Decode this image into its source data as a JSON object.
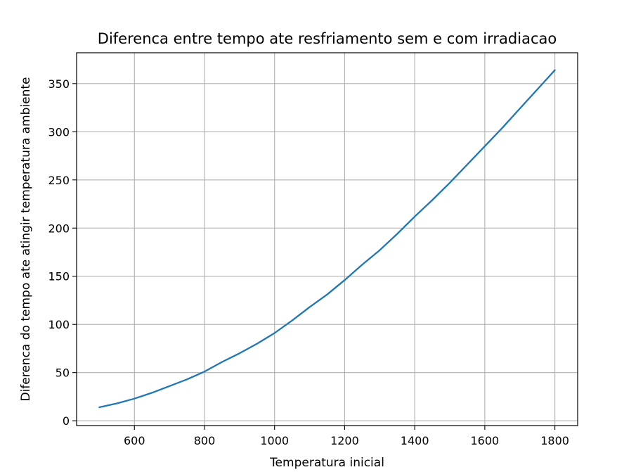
{
  "chart_data": {
    "type": "line",
    "title": "Diferenca entre tempo ate resfriamento sem e com irradiacao",
    "xlabel": "Temperatura inicial",
    "ylabel": "Diferenca do tempo ate atingir temperatura ambiente",
    "xlim": [
      435,
      1865
    ],
    "ylim": [
      -5,
      382
    ],
    "xticks": [
      600,
      800,
      1000,
      1200,
      1400,
      1600,
      1800
    ],
    "yticks": [
      0,
      50,
      100,
      150,
      200,
      250,
      300,
      350
    ],
    "grid": true,
    "series": [
      {
        "color": "#1f77b4",
        "x": [
          500,
          550,
          600,
          650,
          700,
          750,
          800,
          850,
          900,
          950,
          1000,
          1050,
          1100,
          1150,
          1200,
          1250,
          1300,
          1350,
          1400,
          1450,
          1500,
          1550,
          1600,
          1650,
          1700,
          1750,
          1800
        ],
        "y": [
          14,
          18,
          23,
          29,
          36,
          43,
          51,
          61,
          70,
          80,
          91,
          104,
          118,
          131,
          146,
          162,
          177,
          194,
          212,
          229,
          247,
          266,
          285,
          304,
          324,
          344,
          364
        ]
      }
    ]
  }
}
